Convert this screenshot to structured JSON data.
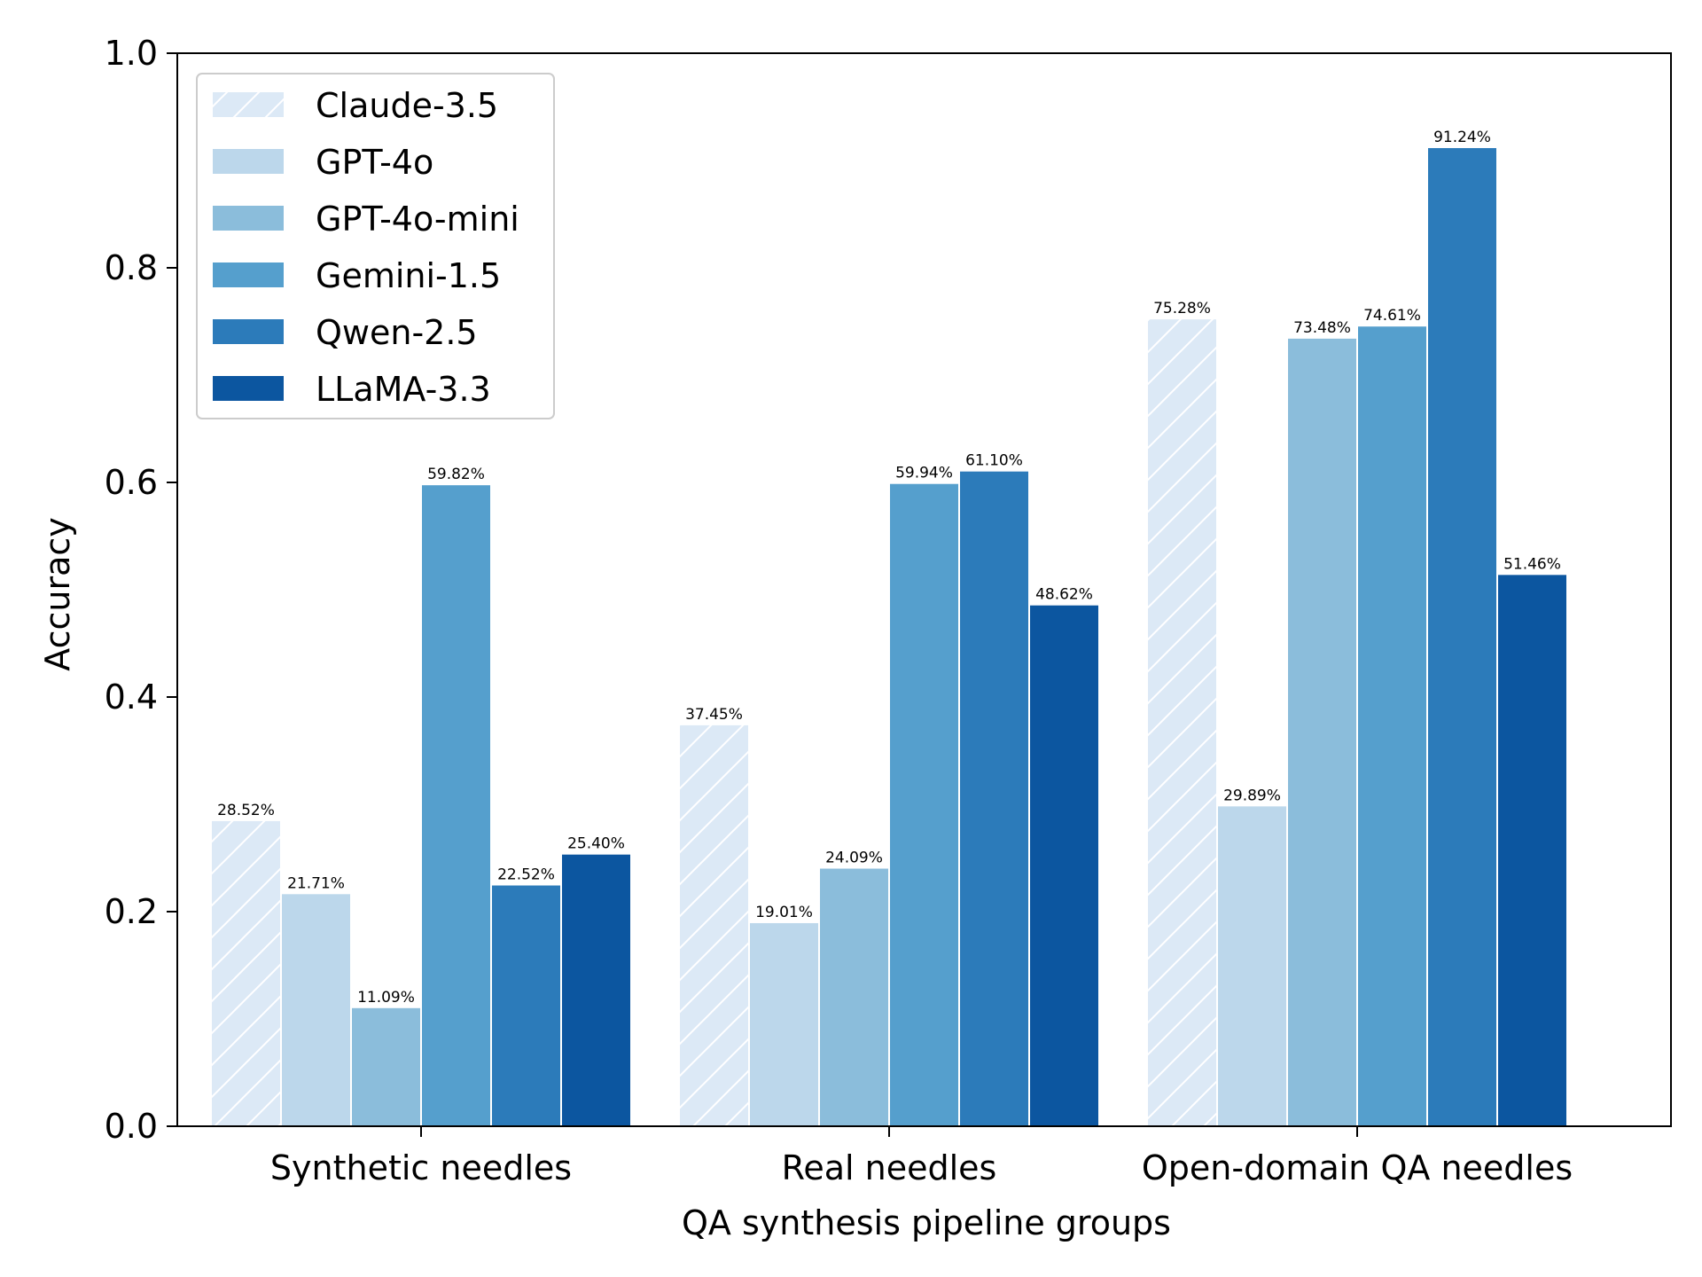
{
  "chart_data": {
    "type": "bar",
    "xlabel": "QA synthesis pipeline groups",
    "ylabel": "Accuracy",
    "ylim": [
      0,
      1.0
    ],
    "yticks": [
      "0.0",
      "0.2",
      "0.4",
      "0.6",
      "0.8",
      "1.0"
    ],
    "grid": false,
    "legend_position": "top-left",
    "categories": [
      "Synthetic needles",
      "Real needles",
      "Open-domain QA needles"
    ],
    "series": [
      {
        "name": "Claude-3.5",
        "color": "#dce9f6",
        "hatch": true,
        "values": [
          0.2852,
          0.3745,
          0.7528
        ],
        "labels": [
          "28.52%",
          "37.45%",
          "75.28%"
        ]
      },
      {
        "name": "GPT-4o",
        "color": "#bcd7eb",
        "hatch": false,
        "values": [
          0.2171,
          0.1901,
          0.2989
        ],
        "labels": [
          "21.71%",
          "19.01%",
          "29.89%"
        ]
      },
      {
        "name": "GPT-4o-mini",
        "color": "#8bbddb",
        "hatch": false,
        "values": [
          0.1109,
          0.2409,
          0.7348
        ],
        "labels": [
          "11.09%",
          "24.09%",
          "73.48%"
        ]
      },
      {
        "name": "Gemini-1.5",
        "color": "#559fcd",
        "hatch": false,
        "values": [
          0.5982,
          0.5994,
          0.7461
        ],
        "labels": [
          "59.82%",
          "59.94%",
          "74.61%"
        ]
      },
      {
        "name": "Qwen-2.5",
        "color": "#2c7bba",
        "hatch": false,
        "values": [
          0.2252,
          0.611,
          0.9124
        ],
        "labels": [
          "22.52%",
          "61.10%",
          "91.24%"
        ]
      },
      {
        "name": "LLaMA-3.3",
        "color": "#0c56a0",
        "hatch": false,
        "values": [
          0.254,
          0.4862,
          0.5146
        ],
        "labels": [
          "25.40%",
          "48.62%",
          "51.46%"
        ]
      }
    ]
  }
}
